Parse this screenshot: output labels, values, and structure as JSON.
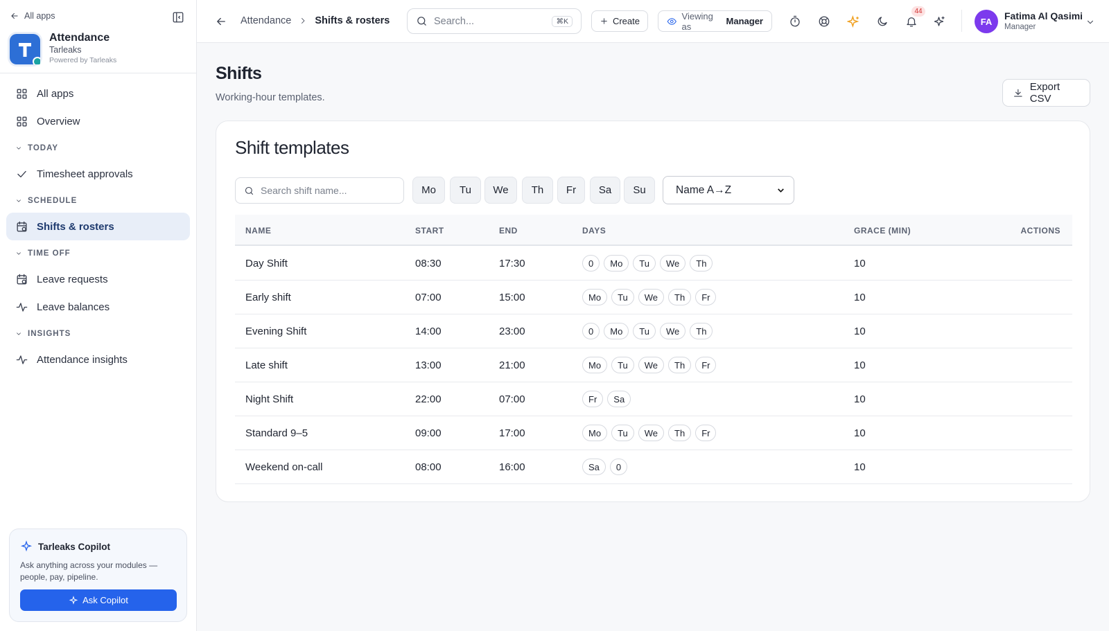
{
  "sidebar": {
    "back": "All apps",
    "app": {
      "name": "Attendance",
      "org": "Tarleaks",
      "powered": "Powered by Tarleaks"
    },
    "nav": [
      {
        "label": "All apps"
      },
      {
        "label": "Overview"
      }
    ],
    "sections": [
      {
        "title": "TODAY",
        "items": [
          {
            "label": "Timesheet approvals"
          }
        ]
      },
      {
        "title": "SCHEDULE",
        "items": [
          {
            "label": "Shifts & rosters",
            "active": true
          }
        ]
      },
      {
        "title": "TIME OFF",
        "items": [
          {
            "label": "Leave requests"
          },
          {
            "label": "Leave balances"
          }
        ]
      },
      {
        "title": "INSIGHTS",
        "items": [
          {
            "label": "Attendance insights"
          }
        ]
      }
    ],
    "copilot": {
      "title": "Tarleaks Copilot",
      "text": "Ask anything across your modules — people, pay, pipeline.",
      "button": "Ask Copilot"
    }
  },
  "topbar": {
    "breadcrumb": [
      "Attendance",
      "Shifts & rosters"
    ],
    "search": "Search...",
    "shortcut": "⌘K",
    "create": "Create",
    "viewing_label": "Viewing as",
    "viewing_role": "Manager",
    "notifications": 44,
    "user": {
      "initials": "FA",
      "name": "Fatima Al Qasimi",
      "role": "Manager"
    }
  },
  "page": {
    "title": "Shifts",
    "subtitle": "Working-hour templates.",
    "export": "Export CSV"
  },
  "card": {
    "title": "Shift templates",
    "search_placeholder": "Search shift name...",
    "day_filters": [
      "Mo",
      "Tu",
      "We",
      "Th",
      "Fr",
      "Sa",
      "Su"
    ],
    "sort": "Name A→Z",
    "columns": [
      "NAME",
      "START",
      "END",
      "DAYS",
      "GRACE (MIN)",
      "ACTIONS"
    ],
    "rows": [
      {
        "name": "Day Shift",
        "start": "08:30",
        "end": "17:30",
        "days": [
          "0",
          "Mo",
          "Tu",
          "We",
          "Th"
        ],
        "grace": 10
      },
      {
        "name": "Early shift",
        "start": "07:00",
        "end": "15:00",
        "days": [
          "Mo",
          "Tu",
          "We",
          "Th",
          "Fr"
        ],
        "grace": 10
      },
      {
        "name": "Evening Shift",
        "start": "14:00",
        "end": "23:00",
        "days": [
          "0",
          "Mo",
          "Tu",
          "We",
          "Th"
        ],
        "grace": 10
      },
      {
        "name": "Late shift",
        "start": "13:00",
        "end": "21:00",
        "days": [
          "Mo",
          "Tu",
          "We",
          "Th",
          "Fr"
        ],
        "grace": 10
      },
      {
        "name": "Night Shift",
        "start": "22:00",
        "end": "07:00",
        "days": [
          "Fr",
          "Sa"
        ],
        "grace": 10
      },
      {
        "name": "Standard 9–5",
        "start": "09:00",
        "end": "17:00",
        "days": [
          "Mo",
          "Tu",
          "We",
          "Th",
          "Fr"
        ],
        "grace": 10
      },
      {
        "name": "Weekend on-call",
        "start": "08:00",
        "end": "16:00",
        "days": [
          "Sa",
          "0"
        ],
        "grace": 10
      }
    ]
  }
}
